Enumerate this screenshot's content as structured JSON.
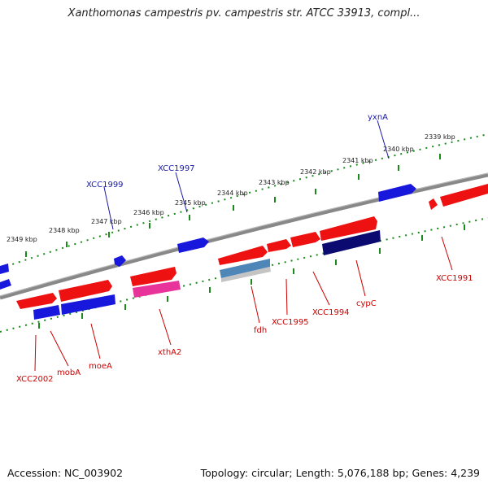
{
  "title": "Xanthomonas campestris pv. campestris str. ATCC 33913, compl...",
  "accession": "Accession: NC_003902",
  "topology": "Topology: circular; Length: 5,076,188 bp; Genes: 4,239",
  "colors": {
    "forward": "#ee1111",
    "reverse": "#1818dd",
    "dark_reverse": "#0a0a70",
    "pink": "#e8339a",
    "steel": "#4f86b8",
    "backbone": "#8a8a8a",
    "ticks": "#1a8a1a",
    "label_red": "#cc0000",
    "label_blue": "#1a1aa8"
  },
  "kbp_labels": [
    "2349 kbp",
    "2348 kbp",
    "2347 kbp",
    "2346 kbp",
    "2345 kbp",
    "2344 kbp",
    "2343 kbp",
    "2342 kbp",
    "2341 kbp",
    "2340 kbp",
    "2339 kbp"
  ],
  "gene_labels": {
    "xcc2002": "XCC2002",
    "moba": "mobA",
    "moea": "moeA",
    "xtha2": "xthA2",
    "fdh": "fdh",
    "xcc1995": "XCC1995",
    "xcc1994": "XCC1994",
    "cypc": "cypC",
    "xcc1991": "XCC1991",
    "xcc1999": "XCC1999",
    "xcc1997": "XCC1997",
    "yxna": "yxnA"
  }
}
